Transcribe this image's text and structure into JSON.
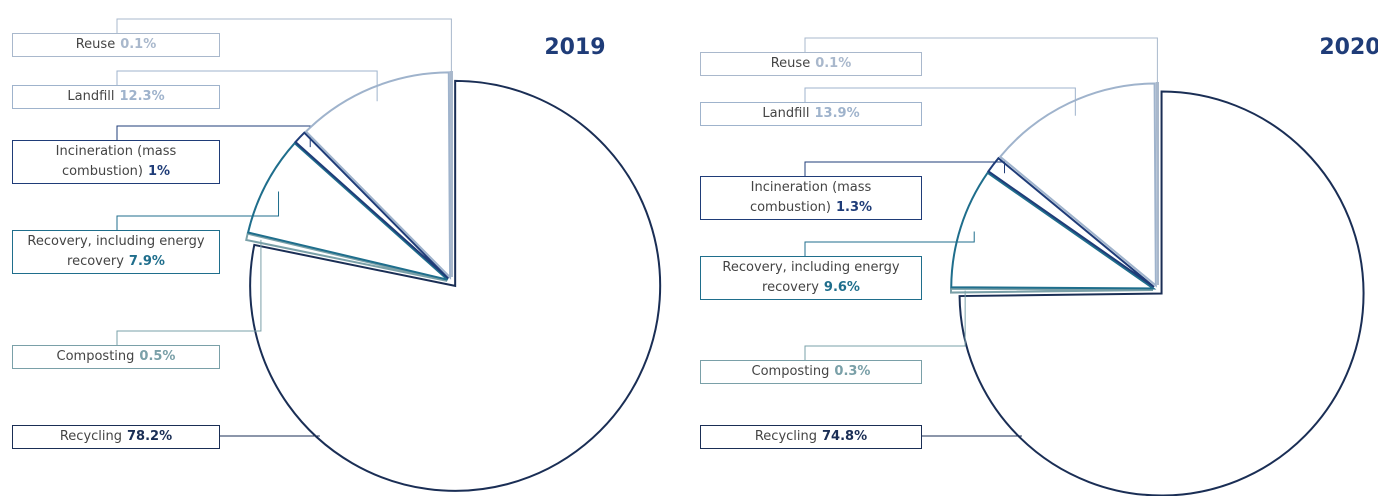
{
  "chart_data": [
    {
      "type": "pie",
      "title": "2019",
      "categories": [
        "Reuse",
        "Landfill",
        "Incineration (mass combustion)",
        "Recovery, including energy recovery",
        "Composting",
        "Recycling"
      ],
      "values": [
        0.1,
        12.3,
        1,
        7.9,
        0.5,
        78.2
      ],
      "value_labels": [
        "0.1%",
        "12.3%",
        "1%",
        "7.9%",
        "0.5%",
        "78.2%"
      ],
      "colors": [
        "#a9b8cc",
        "#9fb3cc",
        "#1f3c78",
        "#1f6e8c",
        "#7aa0a8",
        "#1a2e55"
      ]
    },
    {
      "type": "pie",
      "title": "2020",
      "categories": [
        "Reuse",
        "Landfill",
        "Incineration (mass combustion)",
        "Recovery, including energy recovery",
        "Composting",
        "Recycling"
      ],
      "values": [
        0.1,
        13.9,
        1.3,
        9.6,
        0.3,
        74.8
      ],
      "value_labels": [
        "0.1%",
        "13.9%",
        "1.3%",
        "9.6%",
        "0.3%",
        "74.8%"
      ],
      "colors": [
        "#a9b8cc",
        "#9fb3cc",
        "#1f3c78",
        "#1f6e8c",
        "#7aa0a8",
        "#1a2e55"
      ]
    }
  ]
}
